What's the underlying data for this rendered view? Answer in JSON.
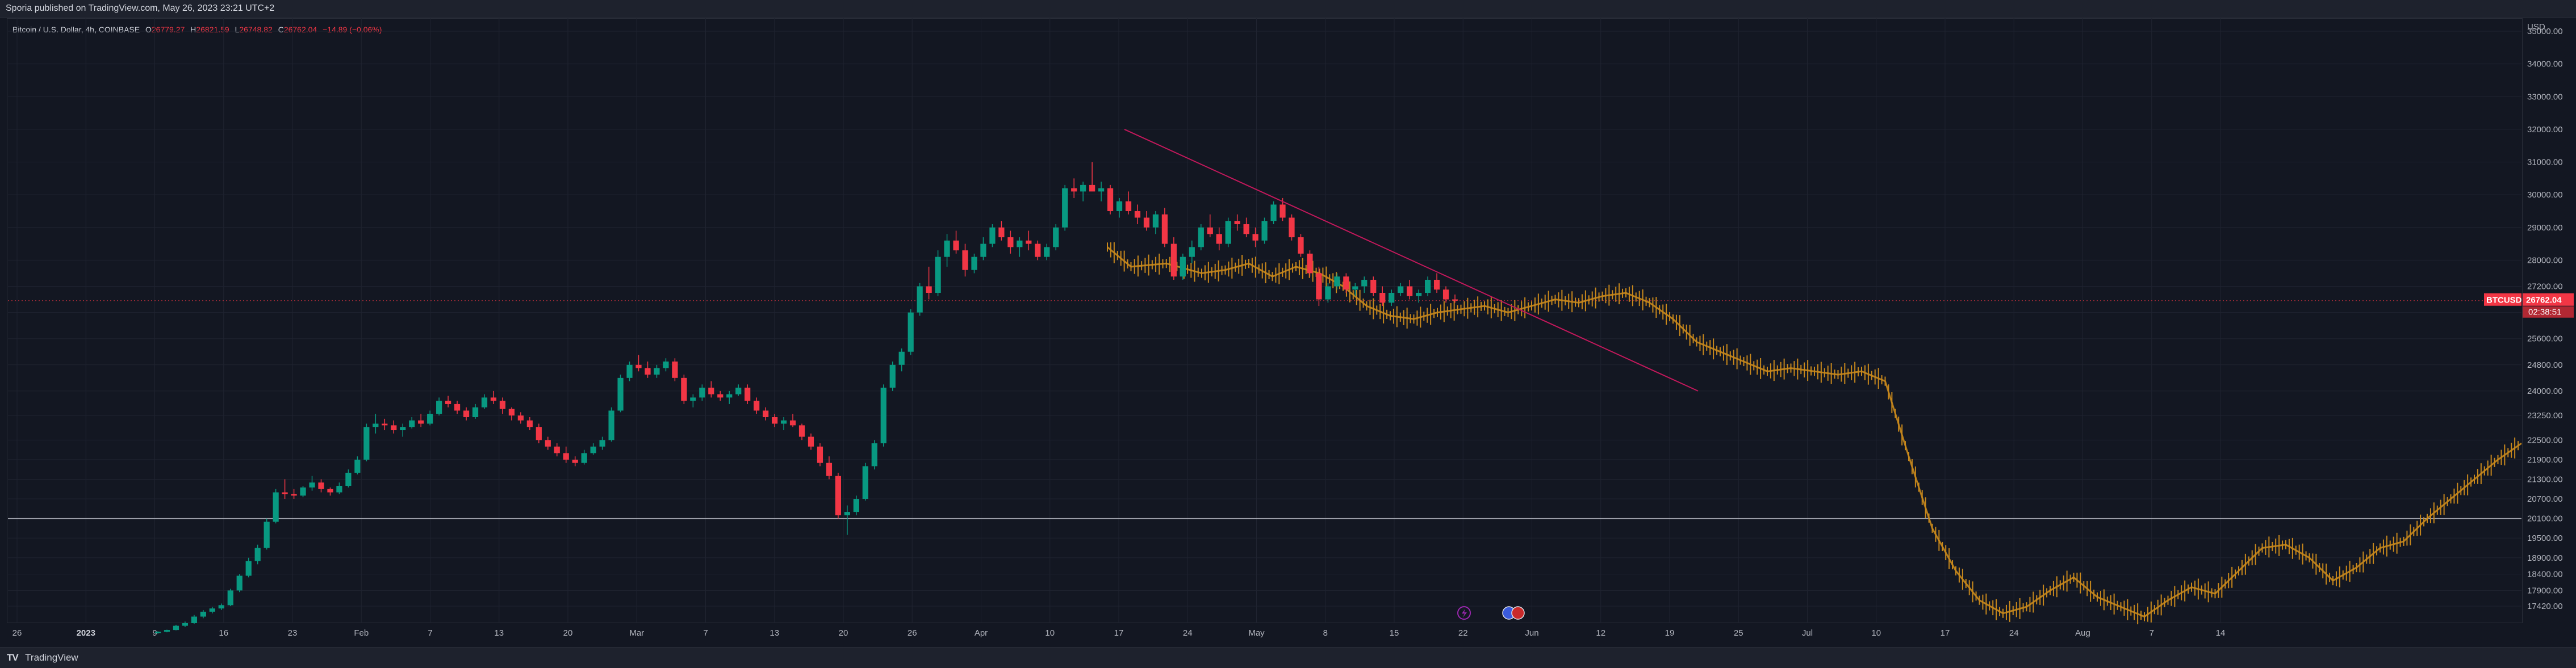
{
  "header": {
    "publish_text": "Sporia published on TradingView.com, May 26, 2023 23:21 UTC+2"
  },
  "legend": {
    "symbol": "Bitcoin / U.S. Dollar, 4h, COINBASE",
    "o_label": "O",
    "o_value": "26779.27",
    "h_label": "H",
    "h_value": "26821.59",
    "l_label": "L",
    "l_value": "26748.82",
    "c_label": "C",
    "c_value": "26762.04",
    "change": "−14.89 (−0.06%)"
  },
  "footer": {
    "logo_mark": "TV",
    "brand": "TradingView"
  },
  "colors": {
    "up": "#089981",
    "down": "#f23645",
    "projection": "#c8881c",
    "trendline": "#c2185b",
    "price_line": "#f23645",
    "grid": "#1f2330",
    "axis_text": "#b2b5be",
    "support_line": "#c5c8d0",
    "event_flag": "#9c27b0"
  },
  "chart_data": {
    "type": "candlestick",
    "symbol": "BTCUSD",
    "timeframe": "4h",
    "exchange": "COINBASE",
    "current_price": "26762.04",
    "countdown": "02:38:51",
    "y_unit": "USD",
    "ylim": [
      16900,
      35400
    ],
    "y_ticks": [
      "35000.00",
      "34000.00",
      "33000.00",
      "32000.00",
      "31000.00",
      "30000.00",
      "29000.00",
      "28000.00",
      "27200.00",
      "26400.00",
      "25600.00",
      "24800.00",
      "24000.00",
      "23250.00",
      "22500.00",
      "21900.00",
      "21300.00",
      "20700.00",
      "20100.00",
      "19500.00",
      "18900.00",
      "18400.00",
      "17900.00",
      "17420.00"
    ],
    "x_ticks": [
      {
        "label": "26",
        "bold": false
      },
      {
        "label": "2023",
        "bold": true
      },
      {
        "label": "9",
        "bold": false
      },
      {
        "label": "16",
        "bold": false
      },
      {
        "label": "23",
        "bold": false
      },
      {
        "label": "Feb",
        "bold": false
      },
      {
        "label": "7",
        "bold": false
      },
      {
        "label": "13",
        "bold": false
      },
      {
        "label": "20",
        "bold": false
      },
      {
        "label": "Mar",
        "bold": false
      },
      {
        "label": "7",
        "bold": false
      },
      {
        "label": "13",
        "bold": false
      },
      {
        "label": "20",
        "bold": false
      },
      {
        "label": "26",
        "bold": false
      },
      {
        "label": "Apr",
        "bold": false
      },
      {
        "label": "10",
        "bold": false
      },
      {
        "label": "17",
        "bold": false
      },
      {
        "label": "24",
        "bold": false
      },
      {
        "label": "May",
        "bold": false
      },
      {
        "label": "8",
        "bold": false
      },
      {
        "label": "15",
        "bold": false
      },
      {
        "label": "22",
        "bold": false
      },
      {
        "label": "Jun",
        "bold": false
      },
      {
        "label": "12",
        "bold": false
      },
      {
        "label": "19",
        "bold": false
      },
      {
        "label": "25",
        "bold": false
      },
      {
        "label": "Jul",
        "bold": false
      },
      {
        "label": "10",
        "bold": false
      },
      {
        "label": "17",
        "bold": false
      },
      {
        "label": "24",
        "bold": false
      },
      {
        "label": "Aug",
        "bold": false
      },
      {
        "label": "7",
        "bold": false
      },
      {
        "label": "14",
        "bold": false
      }
    ],
    "actual_series": {
      "name": "BTCUSD",
      "x": [
        0,
        6,
        10,
        16,
        19,
        24,
        32,
        37,
        42,
        47,
        53,
        57,
        64,
        69,
        73,
        78,
        83,
        86,
        90,
        95,
        99,
        103,
        107,
        110,
        112
      ],
      "y": [
        16700,
        17500,
        20500,
        21100,
        20600,
        23000,
        23300,
        22800,
        23600,
        23000,
        21800,
        22300,
        21700,
        24600,
        24000,
        22400,
        21900,
        20000,
        21800,
        24800,
        26900,
        27900,
        28400,
        28000,
        28400
      ]
    },
    "candles": [
      [
        16600,
        16650,
        16580,
        16640
      ],
      [
        16640,
        16700,
        16620,
        16690
      ],
      [
        16690,
        16850,
        16680,
        16820
      ],
      [
        16820,
        16950,
        16780,
        16900
      ],
      [
        16900,
        17150,
        16880,
        17100
      ],
      [
        17100,
        17300,
        17050,
        17250
      ],
      [
        17250,
        17400,
        17200,
        17350
      ],
      [
        17350,
        17500,
        17300,
        17450
      ],
      [
        17450,
        17950,
        17420,
        17900
      ],
      [
        17900,
        18400,
        17850,
        18350
      ],
      [
        18350,
        18900,
        18300,
        18800
      ],
      [
        18800,
        19300,
        18700,
        19200
      ],
      [
        19200,
        20100,
        19150,
        20000
      ],
      [
        20000,
        21000,
        19950,
        20900
      ],
      [
        20900,
        21300,
        20700,
        20850
      ],
      [
        20850,
        21000,
        20700,
        20800
      ],
      [
        20800,
        21100,
        20750,
        21050
      ],
      [
        21050,
        21400,
        20950,
        21200
      ],
      [
        21200,
        21300,
        20900,
        21000
      ],
      [
        21000,
        21050,
        20800,
        20900
      ],
      [
        20900,
        21200,
        20850,
        21100
      ],
      [
        21100,
        21600,
        21050,
        21500
      ],
      [
        21500,
        22000,
        21450,
        21900
      ],
      [
        21900,
        23000,
        21850,
        22900
      ],
      [
        22900,
        23300,
        22700,
        23000
      ],
      [
        23000,
        23150,
        22800,
        22950
      ],
      [
        22950,
        23100,
        22700,
        22800
      ],
      [
        22800,
        23000,
        22600,
        22900
      ],
      [
        22900,
        23200,
        22850,
        23100
      ],
      [
        23100,
        23300,
        22900,
        23000
      ],
      [
        23000,
        23400,
        22950,
        23300
      ],
      [
        23300,
        23800,
        23250,
        23700
      ],
      [
        23700,
        23850,
        23500,
        23600
      ],
      [
        23600,
        23700,
        23300,
        23400
      ],
      [
        23400,
        23500,
        23100,
        23200
      ],
      [
        23200,
        23600,
        23150,
        23500
      ],
      [
        23500,
        23900,
        23450,
        23800
      ],
      [
        23800,
        24000,
        23600,
        23700
      ],
      [
        23700,
        23800,
        23300,
        23450
      ],
      [
        23450,
        23500,
        23100,
        23250
      ],
      [
        23250,
        23350,
        23000,
        23100
      ],
      [
        23100,
        23200,
        22800,
        22900
      ],
      [
        22900,
        23000,
        22400,
        22500
      ],
      [
        22500,
        22600,
        22200,
        22300
      ],
      [
        22300,
        22400,
        22000,
        22100
      ],
      [
        22100,
        22300,
        21800,
        21900
      ],
      [
        21900,
        22000,
        21700,
        21800
      ],
      [
        21800,
        22200,
        21750,
        22100
      ],
      [
        22100,
        22400,
        22050,
        22300
      ],
      [
        22300,
        22600,
        22200,
        22500
      ],
      [
        22500,
        23500,
        22450,
        23400
      ],
      [
        23400,
        24500,
        23350,
        24400
      ],
      [
        24400,
        24900,
        24300,
        24800
      ],
      [
        24800,
        25100,
        24600,
        24700
      ],
      [
        24700,
        24900,
        24400,
        24500
      ],
      [
        24500,
        24800,
        24400,
        24700
      ],
      [
        24700,
        25000,
        24600,
        24900
      ],
      [
        24900,
        25000,
        24300,
        24400
      ],
      [
        24400,
        24500,
        23600,
        23700
      ],
      [
        23700,
        23900,
        23500,
        23800
      ],
      [
        23800,
        24200,
        23700,
        24100
      ],
      [
        24100,
        24300,
        23800,
        23900
      ],
      [
        23900,
        24000,
        23700,
        23800
      ],
      [
        23800,
        24000,
        23600,
        23900
      ],
      [
        23900,
        24200,
        23850,
        24100
      ],
      [
        24100,
        24200,
        23600,
        23700
      ],
      [
        23700,
        23800,
        23300,
        23400
      ],
      [
        23400,
        23500,
        23100,
        23200
      ],
      [
        23200,
        23300,
        22900,
        23000
      ],
      [
        23000,
        23200,
        22800,
        23100
      ],
      [
        23100,
        23300,
        22900,
        22950
      ],
      [
        22950,
        23000,
        22500,
        22600
      ],
      [
        22600,
        22700,
        22200,
        22300
      ],
      [
        22300,
        22400,
        21700,
        21800
      ],
      [
        21800,
        22000,
        21300,
        21400
      ],
      [
        21400,
        21500,
        20100,
        20200
      ],
      [
        20200,
        20500,
        19600,
        20300
      ],
      [
        20300,
        20800,
        20200,
        20700
      ],
      [
        20700,
        21800,
        20650,
        21700
      ],
      [
        21700,
        22500,
        21600,
        22400
      ],
      [
        22400,
        24200,
        22300,
        24100
      ],
      [
        24100,
        24900,
        24000,
        24800
      ],
      [
        24800,
        25300,
        24600,
        25200
      ],
      [
        25200,
        26500,
        25100,
        26400
      ],
      [
        26400,
        27300,
        26300,
        27200
      ],
      [
        27200,
        27800,
        26800,
        27000
      ],
      [
        27000,
        28300,
        26900,
        28100
      ],
      [
        28100,
        28800,
        27800,
        28600
      ],
      [
        28600,
        28900,
        28200,
        28300
      ],
      [
        28300,
        28500,
        27500,
        27700
      ],
      [
        27700,
        28200,
        27600,
        28100
      ],
      [
        28100,
        28700,
        28000,
        28500
      ],
      [
        28500,
        29100,
        28400,
        29000
      ],
      [
        29000,
        29200,
        28600,
        28700
      ],
      [
        28700,
        28900,
        28200,
        28400
      ],
      [
        28400,
        28700,
        28100,
        28600
      ],
      [
        28600,
        28900,
        28300,
        28500
      ],
      [
        28500,
        28600,
        28000,
        28100
      ],
      [
        28100,
        28500,
        28000,
        28400
      ],
      [
        28400,
        29100,
        28300,
        29000
      ],
      [
        29000,
        30300,
        28900,
        30200
      ],
      [
        30200,
        30500,
        29900,
        30100
      ],
      [
        30100,
        30400,
        29800,
        30300
      ],
      [
        30300,
        31000,
        30200,
        30100
      ],
      [
        30100,
        30400,
        29800,
        30200
      ],
      [
        30200,
        30300,
        29400,
        29500
      ],
      [
        29500,
        29900,
        29300,
        29800
      ],
      [
        29800,
        30100,
        29400,
        29500
      ],
      [
        29500,
        29700,
        29100,
        29300
      ],
      [
        29300,
        29500,
        28900,
        29000
      ],
      [
        29000,
        29500,
        28800,
        29400
      ],
      [
        29400,
        29600,
        28400,
        28500
      ],
      [
        28500,
        28700,
        27400,
        27500
      ],
      [
        27500,
        28200,
        27400,
        28100
      ],
      [
        28100,
        28600,
        27900,
        28400
      ],
      [
        28400,
        29100,
        28300,
        29000
      ],
      [
        29000,
        29400,
        28700,
        28800
      ],
      [
        28800,
        29000,
        28300,
        28500
      ],
      [
        28500,
        29300,
        28400,
        29200
      ],
      [
        29200,
        29400,
        28900,
        29100
      ],
      [
        29100,
        29300,
        28700,
        28800
      ],
      [
        28800,
        29000,
        28400,
        28600
      ],
      [
        28600,
        29300,
        28500,
        29200
      ],
      [
        29200,
        29800,
        29100,
        29700
      ],
      [
        29700,
        29900,
        29200,
        29300
      ],
      [
        29300,
        29400,
        28600,
        28700
      ],
      [
        28700,
        28800,
        28100,
        28200
      ],
      [
        28200,
        28300,
        27500,
        27600
      ],
      [
        27600,
        27800,
        26600,
        26800
      ],
      [
        26800,
        27300,
        26700,
        27200
      ],
      [
        27200,
        27600,
        27100,
        27500
      ],
      [
        27500,
        27600,
        27000,
        27100
      ],
      [
        27100,
        27300,
        26900,
        27200
      ],
      [
        27200,
        27500,
        27000,
        27400
      ],
      [
        27400,
        27500,
        26900,
        27000
      ],
      [
        27000,
        27200,
        26600,
        26700
      ],
      [
        26700,
        27100,
        26600,
        27000
      ],
      [
        27000,
        27300,
        26900,
        27200
      ],
      [
        27200,
        27400,
        26800,
        26900
      ],
      [
        26900,
        27100,
        26700,
        27000
      ],
      [
        27000,
        27500,
        26900,
        27400
      ],
      [
        27400,
        27600,
        27000,
        27100
      ],
      [
        27100,
        27200,
        26700,
        26800
      ],
      [
        26800,
        26950,
        26700,
        26762
      ]
    ],
    "projection_series": {
      "name": "projection",
      "x": [
        0,
        2,
        5,
        8,
        10,
        12,
        14,
        16,
        18,
        20,
        22,
        24,
        26,
        28,
        30,
        32,
        34,
        36,
        38,
        40,
        42,
        44,
        46,
        48,
        50,
        52,
        54,
        56,
        58,
        60,
        62,
        64,
        66,
        68,
        70,
        72,
        74,
        76,
        78,
        80,
        82,
        84,
        86,
        88,
        90,
        92,
        94,
        96,
        98,
        100,
        102,
        104,
        106,
        108,
        110,
        112,
        114,
        116,
        118,
        120
      ],
      "y": [
        28400,
        27800,
        27900,
        27600,
        27700,
        27900,
        27500,
        27800,
        27600,
        27200,
        26600,
        26300,
        26200,
        26400,
        26500,
        26600,
        26400,
        26600,
        26800,
        26700,
        26900,
        27000,
        26700,
        26200,
        25500,
        25200,
        24900,
        24600,
        24700,
        24600,
        24500,
        24600,
        24300,
        22000,
        19800,
        18500,
        17600,
        17200,
        17400,
        17900,
        18300,
        17700,
        17400,
        17100,
        17600,
        18000,
        17800,
        18500,
        19200,
        19300,
        18900,
        18200,
        18600,
        19200,
        19400,
        20100,
        20700,
        21300,
        21900,
        22400
      ]
    },
    "trendline": {
      "x": [
        0,
        1
      ],
      "y": [
        32000,
        24000
      ]
    },
    "horizontal_line": {
      "value": 20100
    }
  }
}
